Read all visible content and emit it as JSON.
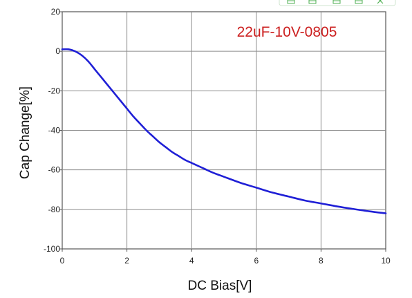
{
  "colors": {
    "curve": "#1f1fd6",
    "annotation": "#cc2020",
    "grid": "#8a8a8a",
    "toolbar_accent": "#4caf50"
  },
  "toolbar": {
    "icons": [
      "thumbnail-icon",
      "crop-icon",
      "copy-icon",
      "image-icon",
      "close-icon"
    ]
  },
  "chart_data": {
    "type": "line",
    "title": "",
    "annotation": "22uF-10V-0805",
    "xlabel": "DC Bias[V]",
    "ylabel": "Cap Change[%]",
    "xlim": [
      0,
      10
    ],
    "ylim": [
      -100,
      20
    ],
    "xticks": [
      0,
      2,
      4,
      6,
      8,
      10
    ],
    "yticks": [
      20,
      0,
      -20,
      -40,
      -60,
      -80,
      -100
    ],
    "ytick_labels": [
      "20",
      "0",
      "-20",
      "-40",
      "-60",
      "-80",
      "-100"
    ],
    "grid": true,
    "legend": "none",
    "series": [
      {
        "x": [
          0,
          0.2,
          0.4,
          0.6,
          0.8,
          1.0,
          1.2,
          1.4,
          1.6,
          1.8,
          2.0,
          2.2,
          2.4,
          2.6,
          2.8,
          3.0,
          3.2,
          3.4,
          3.6,
          3.8,
          4.0,
          4.2,
          4.4,
          4.6,
          4.8,
          5.0,
          5.5,
          6.0,
          6.5,
          7.0,
          7.5,
          8.0,
          8.5,
          9.0,
          9.5,
          10.0
        ],
        "y": [
          1,
          1,
          0,
          -2,
          -5,
          -9,
          -13,
          -17,
          -21,
          -25,
          -29,
          -33,
          -36.5,
          -40,
          -43,
          -46,
          -48.5,
          -51,
          -53,
          -55,
          -56.5,
          -58,
          -59.5,
          -61,
          -62.3,
          -63.5,
          -66.5,
          -69,
          -71.5,
          -73.5,
          -75.5,
          -77,
          -78.5,
          -79.8,
          -81,
          -82
        ]
      }
    ]
  }
}
